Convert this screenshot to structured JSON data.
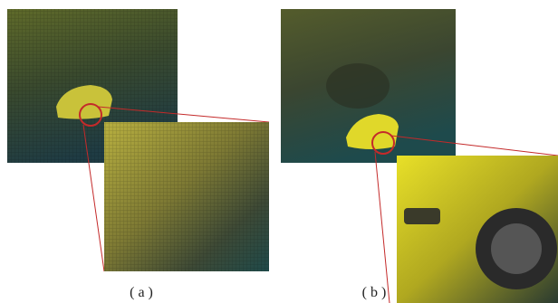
{
  "figure": {
    "panels": [
      {
        "label": "( a )"
      },
      {
        "label": "( b )"
      }
    ]
  }
}
